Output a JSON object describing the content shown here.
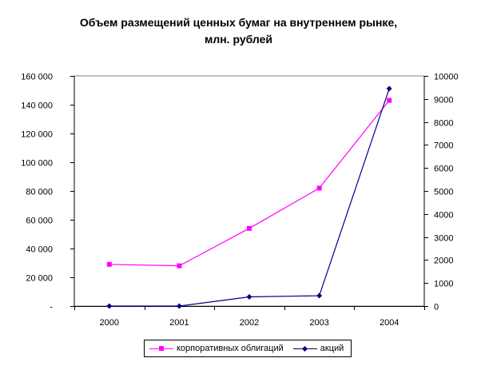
{
  "chart_data": {
    "type": "line",
    "title_lines": [
      "Объем размещений ценных бумаг на внутреннем рынке,",
      "млн. рублей"
    ],
    "categories": [
      "2000",
      "2001",
      "2002",
      "2003",
      "2004"
    ],
    "left_axis": {
      "ylim": [
        0,
        160000
      ],
      "ticks": [
        0,
        20000,
        40000,
        60000,
        80000,
        100000,
        120000,
        140000,
        160000
      ],
      "tick_labels": [
        "-",
        "20 000",
        "40 000",
        "60 000",
        "80 000",
        "100 000",
        "120 000",
        "140 000",
        "160 000"
      ]
    },
    "right_axis": {
      "ylim": [
        0,
        10000
      ],
      "ticks": [
        0,
        1000,
        2000,
        3000,
        4000,
        5000,
        6000,
        7000,
        8000,
        9000,
        10000
      ],
      "tick_labels": [
        "0",
        "1000",
        "2000",
        "3000",
        "4000",
        "5000",
        "6000",
        "7000",
        "8000",
        "9000",
        "10000"
      ]
    },
    "series": [
      {
        "name": "корпоративных облигаций",
        "axis": "left",
        "color": "#ff00ff",
        "marker": "square",
        "values": [
          29000,
          28000,
          54000,
          82000,
          143000
        ]
      },
      {
        "name": "акций",
        "axis": "right",
        "color": "#000080",
        "marker": "diamond",
        "values": [
          0,
          0,
          400,
          450,
          9450
        ]
      }
    ],
    "grid": false,
    "legend_position": "bottom"
  }
}
